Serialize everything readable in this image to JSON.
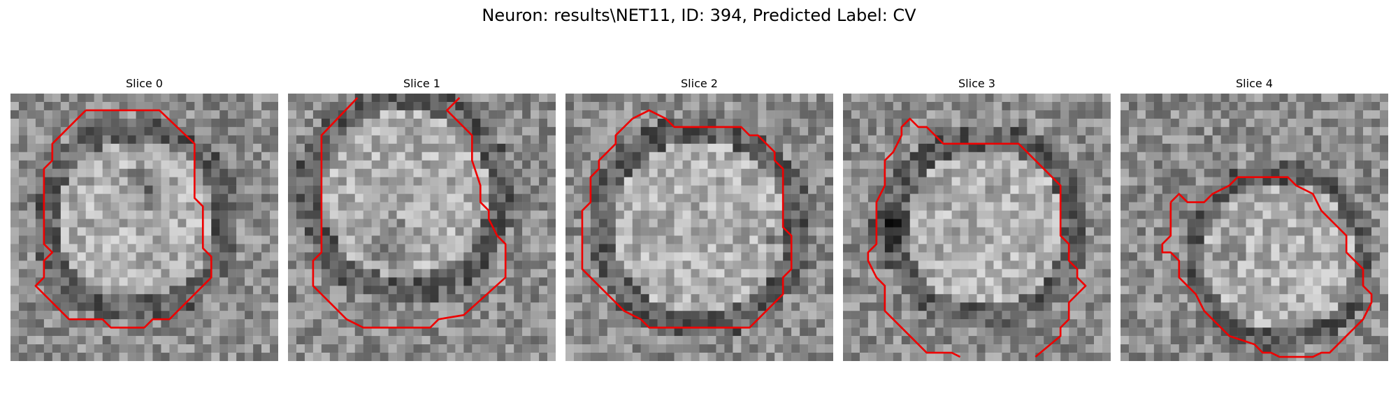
{
  "figure": {
    "title": "Neuron: results\\NET11, ID: 394, Predicted Label: CV",
    "contour_color": "#ee0000"
  },
  "slices": [
    {
      "title": "Slice 0"
    },
    {
      "title": "Slice 1"
    },
    {
      "title": "Slice 2"
    },
    {
      "title": "Slice 3"
    },
    {
      "title": "Slice 4"
    }
  ]
}
